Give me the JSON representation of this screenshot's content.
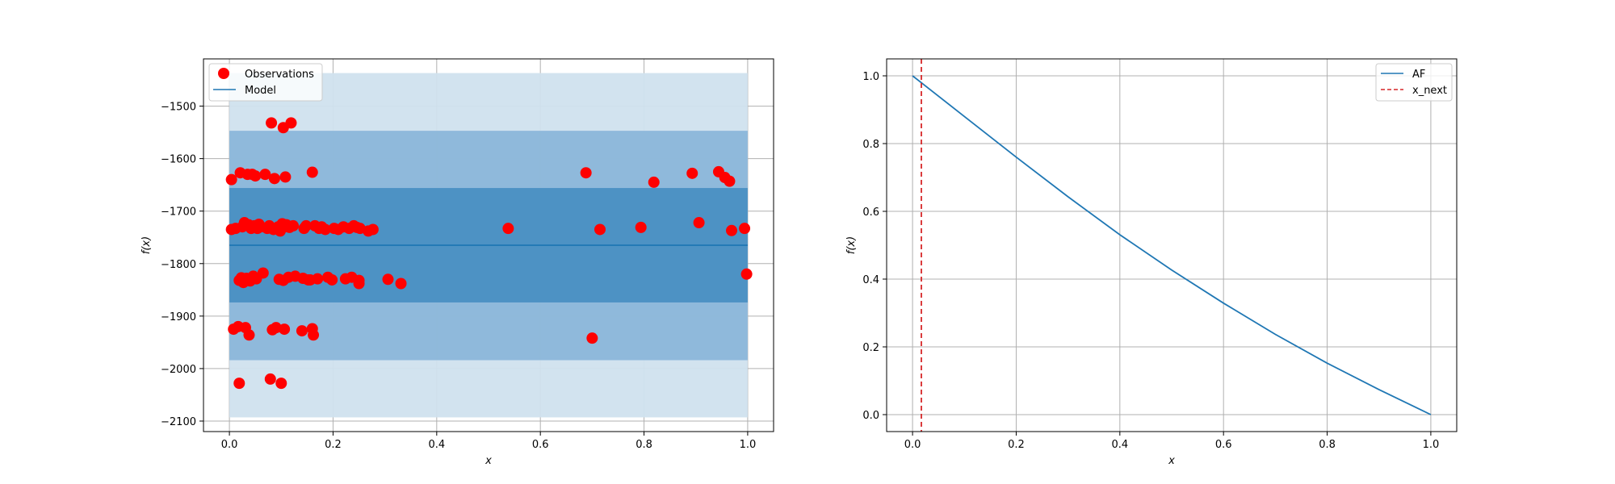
{
  "chart_data": [
    {
      "type": "scatter",
      "xlabel": "x",
      "ylabel": "f(x)",
      "xlim": [
        -0.05,
        1.05
      ],
      "ylim": [
        -2120,
        -1410
      ],
      "xticks": [
        0.0,
        0.2,
        0.4,
        0.6,
        0.8,
        1.0
      ],
      "xtick_labels": [
        "0.0",
        "0.2",
        "0.4",
        "0.6",
        "0.8",
        "1.0"
      ],
      "yticks": [
        -2100,
        -2000,
        -1900,
        -1800,
        -1700,
        -1600,
        -1500
      ],
      "ytick_labels": [
        "−2100",
        "−2000",
        "−1900",
        "−1800",
        "−1700",
        "−1600",
        "−1500"
      ],
      "grid": true,
      "legend_position": "top-left",
      "legend": [
        "Observations",
        "Model"
      ],
      "bands": [
        {
          "lower": -2093,
          "upper": -1437
        },
        {
          "lower": -1984,
          "upper": -1547
        },
        {
          "lower": -1874,
          "upper": -1656
        }
      ],
      "band_colors": [
        "#d0e1ee",
        "#8bb6d9",
        "#4a8fc3"
      ],
      "model": {
        "name": "Model",
        "x": [
          0.0,
          1.0
        ],
        "y": [
          -1765,
          -1765
        ],
        "color": "#1f77b4"
      },
      "observations": {
        "name": "Observations",
        "color": "#ff0000",
        "points": [
          [
            0.004,
            -1640
          ],
          [
            0.004,
            -1735
          ],
          [
            0.008,
            -1925
          ],
          [
            0.012,
            -1733
          ],
          [
            0.017,
            -1920
          ],
          [
            0.019,
            -1832
          ],
          [
            0.019,
            -2028
          ],
          [
            0.021,
            -1627
          ],
          [
            0.023,
            -1827
          ],
          [
            0.025,
            -1730
          ],
          [
            0.027,
            -1836
          ],
          [
            0.029,
            -1722
          ],
          [
            0.031,
            -1922
          ],
          [
            0.033,
            -1828
          ],
          [
            0.035,
            -1630
          ],
          [
            0.037,
            -1726
          ],
          [
            0.038,
            -1936
          ],
          [
            0.04,
            -1833
          ],
          [
            0.042,
            -1733
          ],
          [
            0.044,
            -1630
          ],
          [
            0.046,
            -1824
          ],
          [
            0.048,
            -1728
          ],
          [
            0.05,
            -1633
          ],
          [
            0.052,
            -1829
          ],
          [
            0.054,
            -1733
          ],
          [
            0.057,
            -1725
          ],
          [
            0.061,
            -1730
          ],
          [
            0.065,
            -1818
          ],
          [
            0.069,
            -1630
          ],
          [
            0.073,
            -1733
          ],
          [
            0.077,
            -1728
          ],
          [
            0.079,
            -2020
          ],
          [
            0.081,
            -1532
          ],
          [
            0.083,
            -1926
          ],
          [
            0.085,
            -1735
          ],
          [
            0.087,
            -1638
          ],
          [
            0.09,
            -1922
          ],
          [
            0.092,
            -1733
          ],
          [
            0.094,
            -1730
          ],
          [
            0.096,
            -1830
          ],
          [
            0.098,
            -1738
          ],
          [
            0.1,
            -2028
          ],
          [
            0.102,
            -1724
          ],
          [
            0.104,
            -1832
          ],
          [
            0.104,
            -1541
          ],
          [
            0.106,
            -1730
          ],
          [
            0.106,
            -1925
          ],
          [
            0.108,
            -1635
          ],
          [
            0.11,
            -1726
          ],
          [
            0.112,
            -1728
          ],
          [
            0.114,
            -1826
          ],
          [
            0.116,
            -1731
          ],
          [
            0.119,
            -1532
          ],
          [
            0.123,
            -1728
          ],
          [
            0.127,
            -1824
          ],
          [
            0.14,
            -1928
          ],
          [
            0.142,
            -1828
          ],
          [
            0.144,
            -1733
          ],
          [
            0.148,
            -1728
          ],
          [
            0.152,
            -1831
          ],
          [
            0.156,
            -1831
          ],
          [
            0.16,
            -1626
          ],
          [
            0.16,
            -1924
          ],
          [
            0.162,
            -1936
          ],
          [
            0.165,
            -1728
          ],
          [
            0.17,
            -1829
          ],
          [
            0.173,
            -1733
          ],
          [
            0.178,
            -1730
          ],
          [
            0.185,
            -1735
          ],
          [
            0.19,
            -1826
          ],
          [
            0.198,
            -1831
          ],
          [
            0.202,
            -1733
          ],
          [
            0.21,
            -1735
          ],
          [
            0.22,
            -1730
          ],
          [
            0.224,
            -1829
          ],
          [
            0.231,
            -1733
          ],
          [
            0.236,
            -1826
          ],
          [
            0.24,
            -1728
          ],
          [
            0.246,
            -1731
          ],
          [
            0.25,
            -1832
          ],
          [
            0.25,
            -1838
          ],
          [
            0.252,
            -1733
          ],
          [
            0.268,
            -1738
          ],
          [
            0.277,
            -1735
          ],
          [
            0.306,
            -1830
          ],
          [
            0.331,
            -1838
          ],
          [
            0.538,
            -1733
          ],
          [
            0.688,
            -1627
          ],
          [
            0.7,
            -1942
          ],
          [
            0.715,
            -1735
          ],
          [
            0.794,
            -1731
          ],
          [
            0.819,
            -1645
          ],
          [
            0.893,
            -1628
          ],
          [
            0.906,
            -1722
          ],
          [
            0.944,
            -1625
          ],
          [
            0.956,
            -1636
          ],
          [
            0.965,
            -1643
          ],
          [
            0.969,
            -1737
          ],
          [
            0.994,
            -1733
          ],
          [
            0.998,
            -1820
          ]
        ]
      }
    },
    {
      "type": "line",
      "xlabel": "x",
      "ylabel": "f(x)",
      "xlim": [
        -0.05,
        1.05
      ],
      "ylim": [
        -0.05,
        1.05
      ],
      "xticks": [
        0.0,
        0.2,
        0.4,
        0.6,
        0.8,
        1.0
      ],
      "xtick_labels": [
        "0.0",
        "0.2",
        "0.4",
        "0.6",
        "0.8",
        "1.0"
      ],
      "yticks": [
        0.0,
        0.2,
        0.4,
        0.6,
        0.8,
        1.0
      ],
      "ytick_labels": [
        "0.0",
        "0.2",
        "0.4",
        "0.6",
        "0.8",
        "1.0"
      ],
      "grid": true,
      "legend_position": "top-right",
      "legend": [
        "AF",
        "x_next"
      ],
      "series": [
        {
          "name": "AF",
          "color": "#1f77b4",
          "x": [
            0.0,
            0.1,
            0.2,
            0.3,
            0.4,
            0.5,
            0.6,
            0.7,
            0.8,
            0.9,
            1.0
          ],
          "y": [
            1.0,
            0.88,
            0.76,
            0.643,
            0.531,
            0.427,
            0.329,
            0.237,
            0.152,
            0.074,
            0.0
          ]
        }
      ],
      "vline": {
        "name": "x_next",
        "x": 0.017,
        "color": "#d62728",
        "style": "dashed"
      }
    }
  ]
}
